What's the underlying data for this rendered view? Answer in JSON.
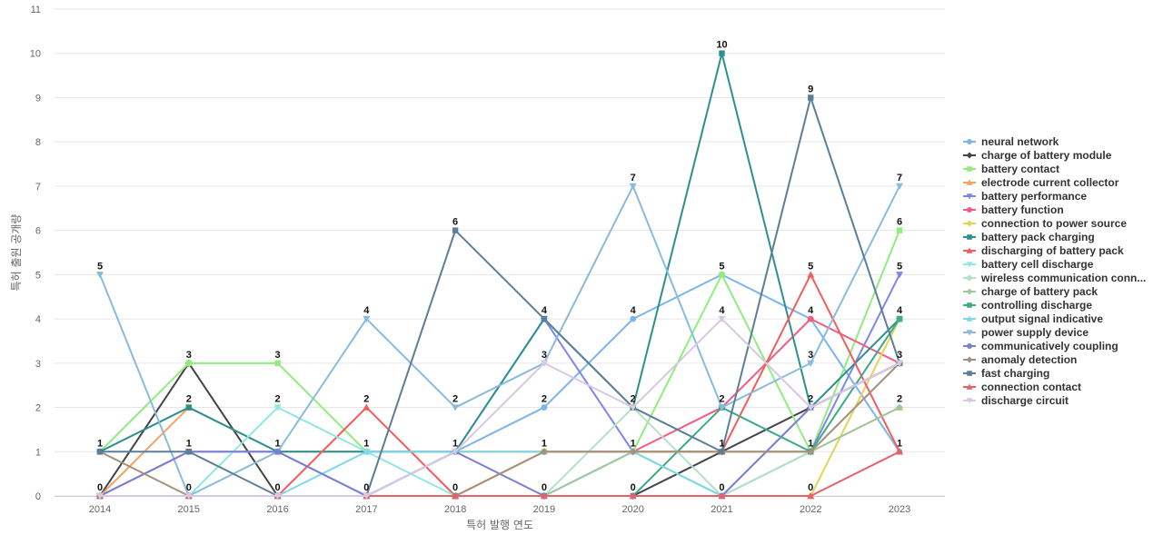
{
  "chart_data": {
    "type": "line",
    "title": "",
    "xlabel": "특허 발행 연도",
    "ylabel": "특허 출원 공개량",
    "ylim": [
      0,
      11
    ],
    "yticks": [
      0,
      1,
      2,
      3,
      4,
      5,
      6,
      7,
      8,
      9,
      10,
      11
    ],
    "categories": [
      "2014",
      "2015",
      "2016",
      "2017",
      "2018",
      "2019",
      "2020",
      "2021",
      "2022",
      "2023"
    ],
    "grid": true,
    "legend_position": "right",
    "series": [
      {
        "name": "neural network",
        "color": "#7cb5ec",
        "marker": "circle",
        "values": [
          0,
          0,
          0,
          0,
          1,
          2,
          4,
          5,
          4,
          1
        ]
      },
      {
        "name": "charge of battery module",
        "color": "#434348",
        "marker": "diamond",
        "values": [
          0,
          3,
          0,
          0,
          0,
          0,
          0,
          1,
          2,
          3
        ]
      },
      {
        "name": "battery contact",
        "color": "#90ed7d",
        "marker": "square",
        "values": [
          1,
          3,
          3,
          1,
          1,
          1,
          1,
          5,
          1,
          6
        ]
      },
      {
        "name": "electrode current collector",
        "color": "#f7a35c",
        "marker": "triangle",
        "values": [
          0,
          2,
          1,
          1,
          1,
          1,
          1,
          1,
          1,
          2
        ]
      },
      {
        "name": "battery performance",
        "color": "#8085e9",
        "marker": "triangle-down",
        "values": [
          0,
          1,
          1,
          0,
          1,
          4,
          1,
          0,
          1,
          5
        ]
      },
      {
        "name": "battery function",
        "color": "#f15c80",
        "marker": "circle",
        "values": [
          0,
          0,
          0,
          0,
          0,
          0,
          1,
          2,
          4,
          3
        ]
      },
      {
        "name": "connection to power source",
        "color": "#e4d354",
        "marker": "diamond",
        "values": [
          0,
          0,
          0,
          0,
          0,
          0,
          0,
          0,
          0,
          4
        ]
      },
      {
        "name": "battery pack charging",
        "color": "#2b908f",
        "marker": "square",
        "values": [
          1,
          2,
          1,
          1,
          1,
          4,
          2,
          10,
          2,
          4
        ]
      },
      {
        "name": "discharging of battery pack",
        "color": "#f45b5b",
        "marker": "triangle",
        "values": [
          0,
          0,
          0,
          2,
          0,
          1,
          1,
          1,
          5,
          1
        ]
      },
      {
        "name": "battery cell discharge",
        "color": "#91e8e1",
        "marker": "triangle-down",
        "values": [
          0,
          0,
          2,
          1,
          0,
          0,
          1,
          0,
          1,
          3
        ]
      },
      {
        "name": "wireless communication conn...",
        "color": "#b5e0c8",
        "marker": "circle",
        "values": [
          0,
          0,
          0,
          0,
          0,
          0,
          2,
          0,
          1,
          3
        ]
      },
      {
        "name": "charge of battery pack",
        "color": "#a0c8a0",
        "marker": "diamond",
        "values": [
          0,
          0,
          0,
          0,
          0,
          0,
          1,
          1,
          1,
          2
        ]
      },
      {
        "name": "controlling discharge",
        "color": "#3daa8a",
        "marker": "square",
        "values": [
          0,
          0,
          0,
          0,
          0,
          0,
          0,
          2,
          1,
          4
        ]
      },
      {
        "name": "output signal indicative",
        "color": "#7fd8e8",
        "marker": "triangle",
        "values": [
          0,
          0,
          0,
          1,
          1,
          1,
          1,
          0,
          2,
          3
        ]
      },
      {
        "name": "power supply device",
        "color": "#88bbdd",
        "marker": "triangle-down",
        "values": [
          5,
          0,
          1,
          4,
          2,
          3,
          7,
          2,
          3,
          7
        ]
      },
      {
        "name": "communicatively coupling",
        "color": "#7b7fd4",
        "marker": "circle",
        "values": [
          0,
          1,
          1,
          0,
          1,
          0,
          0,
          0,
          2,
          3
        ]
      },
      {
        "name": "anomaly detection",
        "color": "#a89078",
        "marker": "diamond",
        "values": [
          1,
          0,
          0,
          0,
          0,
          1,
          1,
          1,
          1,
          3
        ]
      },
      {
        "name": "fast charging",
        "color": "#5b7f98",
        "marker": "square",
        "values": [
          1,
          1,
          0,
          0,
          6,
          4,
          2,
          1,
          9,
          3
        ]
      },
      {
        "name": "connection contact",
        "color": "#e8606a",
        "marker": "triangle",
        "values": [
          0,
          0,
          0,
          0,
          0,
          0,
          0,
          0,
          0,
          1
        ]
      },
      {
        "name": "discharge circuit",
        "color": "#d8c8e0",
        "marker": "triangle-down",
        "values": [
          0,
          0,
          0,
          0,
          1,
          3,
          2,
          4,
          2,
          3
        ]
      }
    ],
    "data_labels": [
      {
        "category": "2014",
        "value": 5
      },
      {
        "category": "2014",
        "value": 1
      },
      {
        "category": "2014",
        "value": 0
      },
      {
        "category": "2015",
        "value": 3
      },
      {
        "category": "2015",
        "value": 2
      },
      {
        "category": "2015",
        "value": 1
      },
      {
        "category": "2015",
        "value": 0
      },
      {
        "category": "2016",
        "value": 3
      },
      {
        "category": "2016",
        "value": 2
      },
      {
        "category": "2016",
        "value": 1
      },
      {
        "category": "2016",
        "value": 0
      },
      {
        "category": "2017",
        "value": 4
      },
      {
        "category": "2017",
        "value": 2
      },
      {
        "category": "2017",
        "value": 1
      },
      {
        "category": "2017",
        "value": 0
      },
      {
        "category": "2018",
        "value": 6
      },
      {
        "category": "2018",
        "value": 2
      },
      {
        "category": "2018",
        "value": 1
      },
      {
        "category": "2018",
        "value": 0
      },
      {
        "category": "2019",
        "value": 4
      },
      {
        "category": "2019",
        "value": 3
      },
      {
        "category": "2019",
        "value": 2
      },
      {
        "category": "2019",
        "value": 1
      },
      {
        "category": "2019",
        "value": 0
      },
      {
        "category": "2020",
        "value": 7
      },
      {
        "category": "2020",
        "value": 4
      },
      {
        "category": "2020",
        "value": 2
      },
      {
        "category": "2020",
        "value": 1
      },
      {
        "category": "2020",
        "value": 0
      },
      {
        "category": "2021",
        "value": 10
      },
      {
        "category": "2021",
        "value": 5
      },
      {
        "category": "2021",
        "value": 4
      },
      {
        "category": "2021",
        "value": 2
      },
      {
        "category": "2021",
        "value": 1
      },
      {
        "category": "2021",
        "value": 0
      },
      {
        "category": "2022",
        "value": 9
      },
      {
        "category": "2022",
        "value": 5
      },
      {
        "category": "2022",
        "value": 4
      },
      {
        "category": "2022",
        "value": 3
      },
      {
        "category": "2022",
        "value": 2
      },
      {
        "category": "2022",
        "value": 1
      },
      {
        "category": "2022",
        "value": 0
      },
      {
        "category": "2023",
        "value": 7
      },
      {
        "category": "2023",
        "value": 6
      },
      {
        "category": "2023",
        "value": 5
      },
      {
        "category": "2023",
        "value": 4
      },
      {
        "category": "2023",
        "value": 3
      },
      {
        "category": "2023",
        "value": 2
      },
      {
        "category": "2023",
        "value": 1
      }
    ]
  }
}
